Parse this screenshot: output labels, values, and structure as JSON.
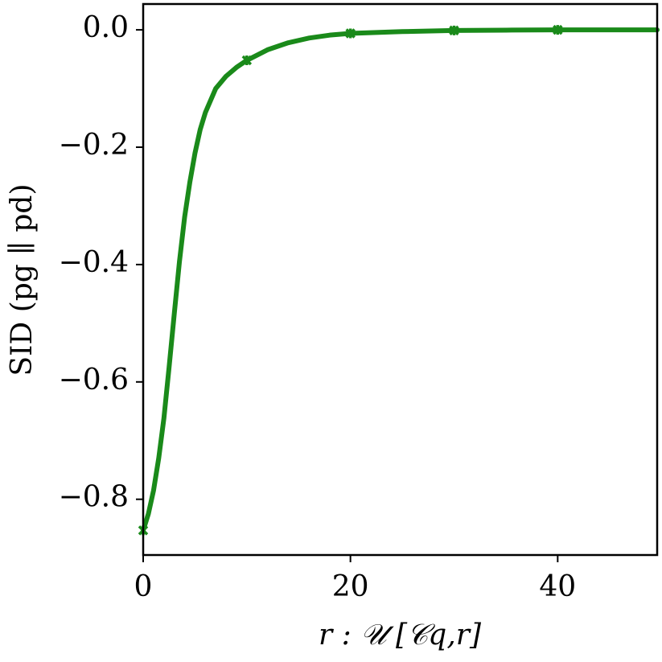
{
  "chart_data": {
    "type": "line",
    "xlabel": "r : 𝒰 [𝒞q,r]",
    "ylabel": "SID (pg ∥ pd)",
    "series": [
      {
        "color": "#1a8a1a",
        "x": [
          0,
          0.5,
          1,
          1.5,
          2,
          2.5,
          3,
          3.5,
          4,
          4.5,
          5,
          5.5,
          6,
          7,
          8,
          9,
          10,
          12,
          14,
          16,
          18,
          20,
          25,
          30,
          35,
          40,
          49.6
        ],
        "values": [
          -0.853,
          -0.825,
          -0.785,
          -0.73,
          -0.662,
          -0.575,
          -0.484,
          -0.395,
          -0.319,
          -0.26,
          -0.21,
          -0.17,
          -0.141,
          -0.1,
          -0.079,
          -0.064,
          -0.052,
          -0.034,
          -0.022,
          -0.014,
          -0.009,
          -0.006,
          -0.003,
          -0.001,
          -0.0005,
          0,
          0
        ]
      },
      {
        "color": "#1a8a1a",
        "marker": "x",
        "x": [
          0,
          10,
          20,
          30,
          40
        ],
        "values": [
          -0.853,
          -0.052,
          -0.006,
          -0.001,
          0
        ]
      }
    ],
    "xlim": [
      0,
      49.6
    ],
    "ylim": [
      -0.895,
      0.044
    ],
    "xticks": [
      0,
      20,
      40
    ],
    "yticks": [
      {
        "value": 0,
        "label": "0.0"
      },
      {
        "value": -0.2,
        "label": "−0.2"
      },
      {
        "value": -0.4,
        "label": "−0.4"
      },
      {
        "value": -0.6,
        "label": "−0.6"
      },
      {
        "value": -0.8,
        "label": "−0.8"
      }
    ]
  }
}
